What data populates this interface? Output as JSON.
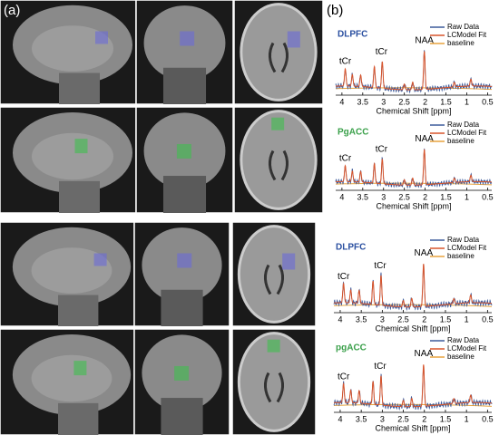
{
  "panels": [
    {
      "label_a": "(a)",
      "label_b": "(b)",
      "spectra": [
        {
          "region": "DLPFC",
          "peaks": [
            "tCr",
            "tCr",
            "NAA"
          ],
          "legend": [
            "Raw Data",
            "LCModel Fit",
            "baseline"
          ],
          "xticks": [
            "4",
            "3.5",
            "3",
            "2.5",
            "2",
            "1.5",
            "1",
            "0.5"
          ],
          "xlabel": "Chemical Shift [ppm]"
        },
        {
          "region": "PgACC",
          "peaks": [
            "tCr",
            "tCr",
            "NAA"
          ],
          "legend": [
            "Raw Data",
            "LCModel Fit",
            "baseline"
          ],
          "xticks": [
            "4",
            "3.5",
            "3",
            "2.5",
            "2",
            "1.5",
            "1",
            "0.5"
          ],
          "xlabel": "Chemical Shift [ppm]"
        }
      ]
    },
    {
      "spectra": [
        {
          "region": "DLPFC",
          "peaks": [
            "tCr",
            "tCr",
            "NAA"
          ],
          "legend": [
            "Raw Data",
            "LCModel Fit",
            "baseline"
          ],
          "xticks": [
            "4",
            "3.5",
            "3",
            "2.5",
            "2",
            "1.5",
            "1",
            "0.5"
          ],
          "xlabel": "Chemical Shift [ppm]"
        },
        {
          "region": "pgACC",
          "peaks": [
            "tCr",
            "tCr",
            "NAA"
          ],
          "legend": [
            "Raw Data",
            "LCModel Fit",
            "baseline"
          ],
          "xticks": [
            "4",
            "3.5",
            "3",
            "2.5",
            "2",
            "1.5",
            "1",
            "0.5"
          ],
          "xlabel": "Chemical Shift [ppm]"
        }
      ]
    }
  ]
}
